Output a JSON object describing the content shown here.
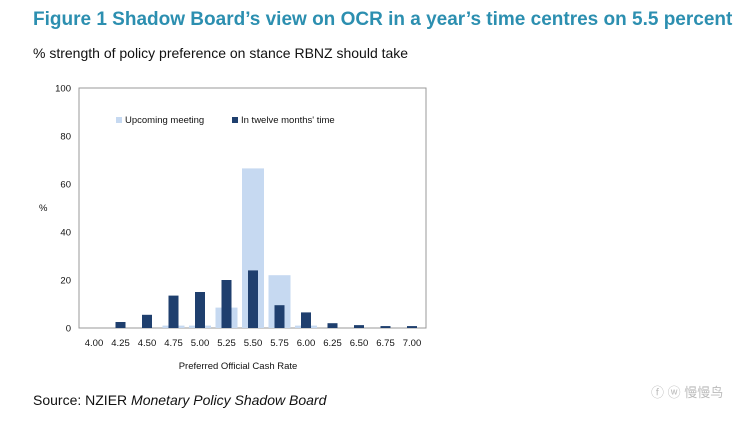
{
  "figure": {
    "title": "Figure 1 Shadow Board’s view on OCR in a year’s time centres on 5.5 percent",
    "subtitle": "% strength of policy preference on stance RBNZ should take",
    "source_prefix": "Source: NZIER ",
    "source_italic": "Monetary Policy Shadow Board",
    "watermark": "ⓕ ⓦ 慢慢鸟"
  },
  "colors": {
    "title": "#2c8fb0",
    "upcoming": "#c6d9f1",
    "twelve_months": "#1f3f6e"
  },
  "chart_data": {
    "type": "bar",
    "categories": [
      "4.00",
      "4.25",
      "4.50",
      "4.75",
      "5.00",
      "5.25",
      "5.50",
      "5.75",
      "6.00",
      "6.25",
      "6.50",
      "6.75",
      "7.00"
    ],
    "series": [
      {
        "name": "Upcoming meeting",
        "values": [
          0,
          0,
          0,
          1,
          1,
          8.5,
          66.5,
          22,
          1,
          0,
          0,
          0,
          0
        ]
      },
      {
        "name": "In twelve months' time",
        "values": [
          0,
          2.5,
          5.5,
          13.5,
          15,
          20,
          24,
          9.5,
          6.5,
          2,
          1.2,
          0.8,
          0.8
        ]
      }
    ],
    "xlabel": "Preferred  Official Cash Rate",
    "ylabel": "%",
    "ylim": [
      0,
      100
    ],
    "yticks": [
      0,
      20,
      40,
      60,
      80,
      100
    ],
    "legend_position": "top-left inside plot",
    "grid": false
  }
}
